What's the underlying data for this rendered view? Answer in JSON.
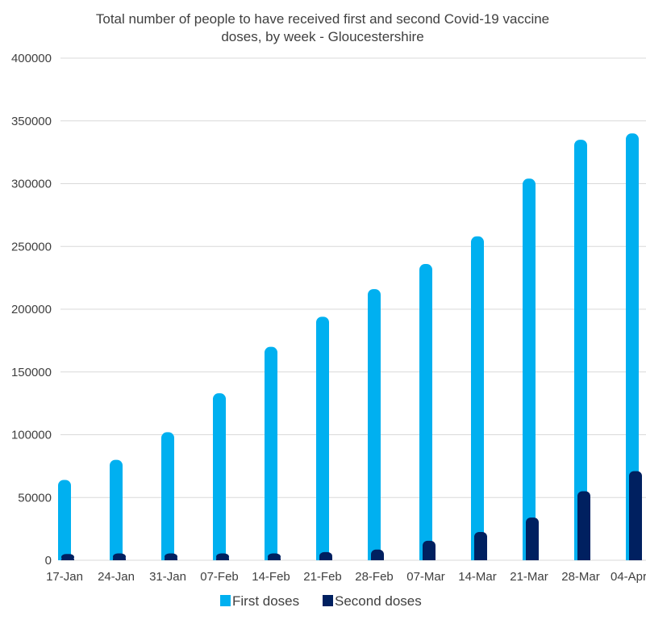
{
  "chart_data": {
    "type": "bar",
    "title": "Total number of people to have received first and  second Covid-19 vaccine doses, by week - Gloucestershire",
    "title_lines": [
      "Total number of people to have received first and  second Covid-19 vaccine",
      "doses, by week - Gloucestershire"
    ],
    "categories": [
      "17-Jan",
      "24-Jan",
      "31-Jan",
      "07-Feb",
      "14-Feb",
      "21-Feb",
      "28-Feb",
      "07-Mar",
      "14-Mar",
      "21-Mar",
      "28-Mar",
      "04-Apr"
    ],
    "series": [
      {
        "name": "First doses",
        "color": "#00b0f0",
        "values": [
          64000,
          80000,
          102000,
          133000,
          170000,
          194000,
          216000,
          236000,
          258000,
          304000,
          335000,
          340000
        ]
      },
      {
        "name": "Second doses",
        "color": "#002060",
        "values": [
          5000,
          5500,
          5500,
          5500,
          5500,
          6500,
          8500,
          15500,
          22500,
          34000,
          55000,
          71000
        ]
      }
    ],
    "ylim": [
      0,
      400000
    ],
    "yticks": [
      "0",
      "50000",
      "100000",
      "150000",
      "200000",
      "250000",
      "300000",
      "350000",
      "400000"
    ],
    "grid": true,
    "legend_position": "bottom"
  }
}
